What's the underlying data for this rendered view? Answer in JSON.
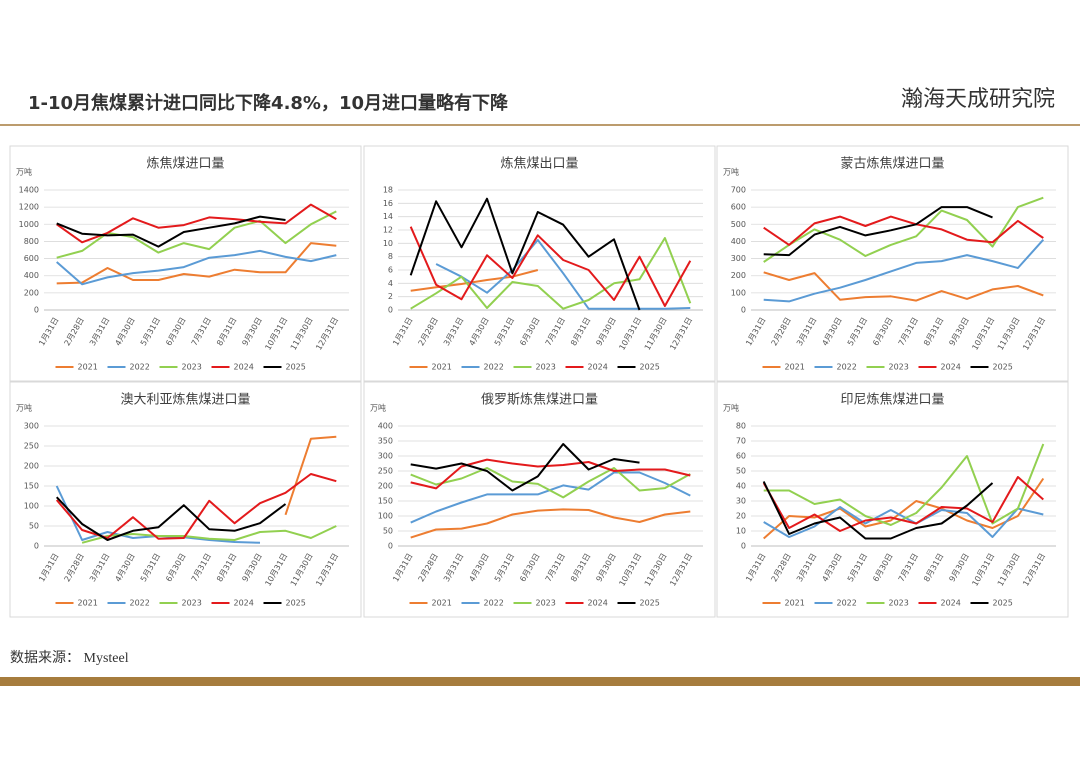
{
  "header": {
    "title": "1-10月焦煤累计进口同比下降4.8%，10月进口量略有下降",
    "logo": "瀚海天成研究院"
  },
  "chart_data": [
    {
      "type": "line",
      "title": "炼焦煤进口量",
      "y_label": "万吨",
      "categories": [
        "1月31日",
        "2月28日",
        "3月31日",
        "4月30日",
        "5月31日",
        "6月30日",
        "7月31日",
        "8月31日",
        "9月30日",
        "10月31日",
        "11月30日",
        "12月31日"
      ],
      "series": [
        {
          "name": "2021",
          "color": "#ed7d31",
          "values": [
            310,
            320,
            490,
            350,
            350,
            420,
            390,
            470,
            440,
            440,
            780,
            750
          ]
        },
        {
          "name": "2022",
          "color": "#5b9bd5",
          "values": [
            560,
            300,
            380,
            430,
            460,
            500,
            610,
            640,
            690,
            620,
            570,
            640
          ]
        },
        {
          "name": "2023",
          "color": "#92d050",
          "values": [
            610,
            690,
            900,
            850,
            670,
            780,
            710,
            960,
            1040,
            780,
            1000,
            1150
          ]
        },
        {
          "name": "2024",
          "color": "#e31a1c",
          "values": [
            1000,
            790,
            900,
            1070,
            960,
            990,
            1080,
            1060,
            1030,
            1010,
            1230,
            1060
          ]
        },
        {
          "name": "2025",
          "color": "#000000",
          "values": [
            1010,
            890,
            870,
            880,
            740,
            910,
            960,
            1010,
            1090,
            1050,
            null,
            null
          ]
        }
      ],
      "ylim": [
        0,
        1400
      ],
      "yticks": [
        0,
        200,
        400,
        600,
        800,
        1000,
        1200,
        1400
      ],
      "grid": true,
      "legend": "bottom"
    },
    {
      "type": "line",
      "title": "炼焦煤出口量",
      "categories": [
        "1月31日",
        "2月28日",
        "3月31日",
        "4月30日",
        "5月31日",
        "6月30日",
        "7月31日",
        "8月31日",
        "9月30日",
        "10月31日",
        "11月30日",
        "12月31日"
      ],
      "series": [
        {
          "name": "2021",
          "color": "#ed7d31",
          "values": [
            2.9,
            3.4,
            3.9,
            4.5,
            5.0,
            6.0,
            null,
            null,
            null,
            null,
            null,
            null
          ]
        },
        {
          "name": "2022",
          "color": "#5b9bd5",
          "values": [
            null,
            6.9,
            5.0,
            2.6,
            6.0,
            10.5,
            5.5,
            0.2,
            0.2,
            0.2,
            0.2,
            0.3
          ]
        },
        {
          "name": "2023",
          "color": "#92d050",
          "values": [
            0.2,
            2.5,
            5.0,
            0.3,
            4.2,
            3.6,
            0.2,
            1.5,
            4.0,
            4.6,
            10.8,
            1.0
          ]
        },
        {
          "name": "2024",
          "color": "#e31a1c",
          "values": [
            12.5,
            3.8,
            1.6,
            8.2,
            4.8,
            11.2,
            7.5,
            6.0,
            1.5,
            8.0,
            0.6,
            7.4
          ]
        },
        {
          "name": "2025",
          "color": "#000000",
          "values": [
            5.2,
            16.3,
            9.4,
            16.7,
            5.5,
            14.7,
            12.8,
            8.0,
            10.6,
            0.0,
            null,
            null
          ]
        }
      ],
      "ylim": [
        0,
        18
      ],
      "yticks": [
        0,
        2,
        4,
        6,
        8,
        10,
        12,
        14,
        16,
        18
      ],
      "grid": true,
      "legend": "bottom"
    },
    {
      "type": "line",
      "title": "蒙古炼焦煤进口量",
      "y_label": "万吨",
      "categories": [
        "1月31日",
        "2月28日",
        "3月31日",
        "4月30日",
        "5月31日",
        "6月30日",
        "7月31日",
        "8月31日",
        "9月30日",
        "10月31日",
        "11月30日",
        "12月31日"
      ],
      "series": [
        {
          "name": "2021",
          "color": "#ed7d31",
          "values": [
            220,
            175,
            215,
            60,
            75,
            80,
            55,
            110,
            65,
            120,
            140,
            85
          ]
        },
        {
          "name": "2022",
          "color": "#5b9bd5",
          "values": [
            60,
            50,
            95,
            130,
            175,
            225,
            275,
            285,
            320,
            285,
            245,
            410
          ]
        },
        {
          "name": "2023",
          "color": "#92d050",
          "values": [
            280,
            380,
            470,
            410,
            315,
            380,
            430,
            580,
            525,
            370,
            600,
            655
          ]
        },
        {
          "name": "2024",
          "color": "#e31a1c",
          "values": [
            480,
            380,
            505,
            545,
            490,
            545,
            500,
            470,
            410,
            395,
            520,
            420
          ]
        },
        {
          "name": "2025",
          "color": "#000000",
          "values": [
            325,
            320,
            440,
            485,
            435,
            465,
            500,
            600,
            600,
            540,
            null,
            null
          ]
        }
      ],
      "ylim": [
        0,
        700
      ],
      "yticks": [
        0,
        100,
        200,
        300,
        400,
        500,
        600,
        700
      ],
      "grid": true,
      "legend": "bottom"
    },
    {
      "type": "line",
      "title": "澳大利亚炼焦煤进口量",
      "y_label": "万吨",
      "categories": [
        "1月31日",
        "2月28日",
        "3月31日",
        "4月30日",
        "5月31日",
        "6月30日",
        "7月31日",
        "8月31日",
        "9月30日",
        "10月31日",
        "11月30日",
        "12月31日"
      ],
      "series": [
        {
          "name": "2021",
          "color": "#ed7d31",
          "values": [
            null,
            null,
            null,
            null,
            null,
            null,
            null,
            null,
            null,
            78,
            268,
            273
          ]
        },
        {
          "name": "2022",
          "color": "#5b9bd5",
          "values": [
            150,
            15,
            35,
            20,
            25,
            22,
            15,
            10,
            8,
            null,
            null,
            null
          ]
        },
        {
          "name": "2023",
          "color": "#92d050",
          "values": [
            null,
            8,
            25,
            30,
            25,
            25,
            18,
            15,
            35,
            38,
            20,
            50
          ]
        },
        {
          "name": "2024",
          "color": "#e31a1c",
          "values": [
            115,
            40,
            20,
            72,
            18,
            20,
            113,
            57,
            107,
            133,
            180,
            162
          ]
        },
        {
          "name": "2025",
          "color": "#000000",
          "values": [
            122,
            55,
            15,
            38,
            47,
            102,
            42,
            38,
            57,
            105,
            null,
            null
          ]
        }
      ],
      "ylim": [
        0,
        300
      ],
      "yticks": [
        0,
        50,
        100,
        150,
        200,
        250,
        300
      ],
      "grid": true,
      "legend": "bottom"
    },
    {
      "type": "line",
      "title": "俄罗斯炼焦煤进口量",
      "y_label": "万吨",
      "categories": [
        "1月31日",
        "2月28日",
        "3月31日",
        "4月30日",
        "5月31日",
        "6月30日",
        "7月31日",
        "8月31日",
        "9月30日",
        "10月31日",
        "11月30日",
        "12月31日"
      ],
      "series": [
        {
          "name": "2021",
          "color": "#ed7d31",
          "values": [
            28,
            55,
            58,
            75,
            105,
            118,
            122,
            120,
            95,
            80,
            105,
            115
          ]
        },
        {
          "name": "2022",
          "color": "#5b9bd5",
          "values": [
            78,
            115,
            145,
            172,
            172,
            172,
            202,
            188,
            245,
            245,
            210,
            168
          ]
        },
        {
          "name": "2023",
          "color": "#92d050",
          "values": [
            238,
            205,
            225,
            260,
            215,
            207,
            162,
            215,
            260,
            185,
            193,
            240
          ]
        },
        {
          "name": "2024",
          "color": "#e31a1c",
          "values": [
            212,
            192,
            265,
            288,
            275,
            265,
            270,
            280,
            250,
            255,
            255,
            235
          ]
        },
        {
          "name": "2025",
          "color": "#000000",
          "values": [
            272,
            258,
            275,
            250,
            185,
            232,
            340,
            255,
            290,
            278,
            null,
            null
          ]
        }
      ],
      "ylim": [
        0,
        400
      ],
      "yticks": [
        0,
        50,
        100,
        150,
        200,
        250,
        300,
        350,
        400
      ],
      "grid": true,
      "legend": "bottom"
    },
    {
      "type": "line",
      "title": "印尼炼焦煤进口量",
      "y_label": "万吨",
      "categories": [
        "1月31日",
        "2月28日",
        "3月31日",
        "4月30日",
        "5月31日",
        "6月30日",
        "7月31日",
        "8月31日",
        "9月30日",
        "10月31日",
        "11月30日",
        "12月31日"
      ],
      "series": [
        {
          "name": "2021",
          "color": "#ed7d31",
          "values": [
            5,
            20,
            19,
            25,
            13,
            17,
            30,
            25,
            17,
            12,
            20,
            45
          ]
        },
        {
          "name": "2022",
          "color": "#5b9bd5",
          "values": [
            16,
            6,
            13,
            26,
            15,
            24,
            15,
            24,
            22,
            6,
            25,
            21
          ]
        },
        {
          "name": "2023",
          "color": "#92d050",
          "values": [
            37,
            37,
            28,
            31,
            20,
            14,
            22,
            39,
            60,
            15,
            25,
            68
          ]
        },
        {
          "name": "2024",
          "color": "#e31a1c",
          "values": [
            42,
            12,
            21,
            10,
            17,
            19,
            15,
            26,
            25,
            16,
            46,
            31
          ]
        },
        {
          "name": "2025",
          "color": "#000000",
          "values": [
            43,
            8,
            15,
            19,
            5,
            5,
            12,
            15,
            27,
            42,
            null,
            null
          ]
        }
      ],
      "ylim": [
        0,
        80
      ],
      "yticks": [
        0,
        10,
        20,
        30,
        40,
        50,
        60,
        70,
        80
      ],
      "grid": true,
      "legend": "bottom"
    }
  ],
  "footer": {
    "source": "数据来源： Mysteel"
  }
}
